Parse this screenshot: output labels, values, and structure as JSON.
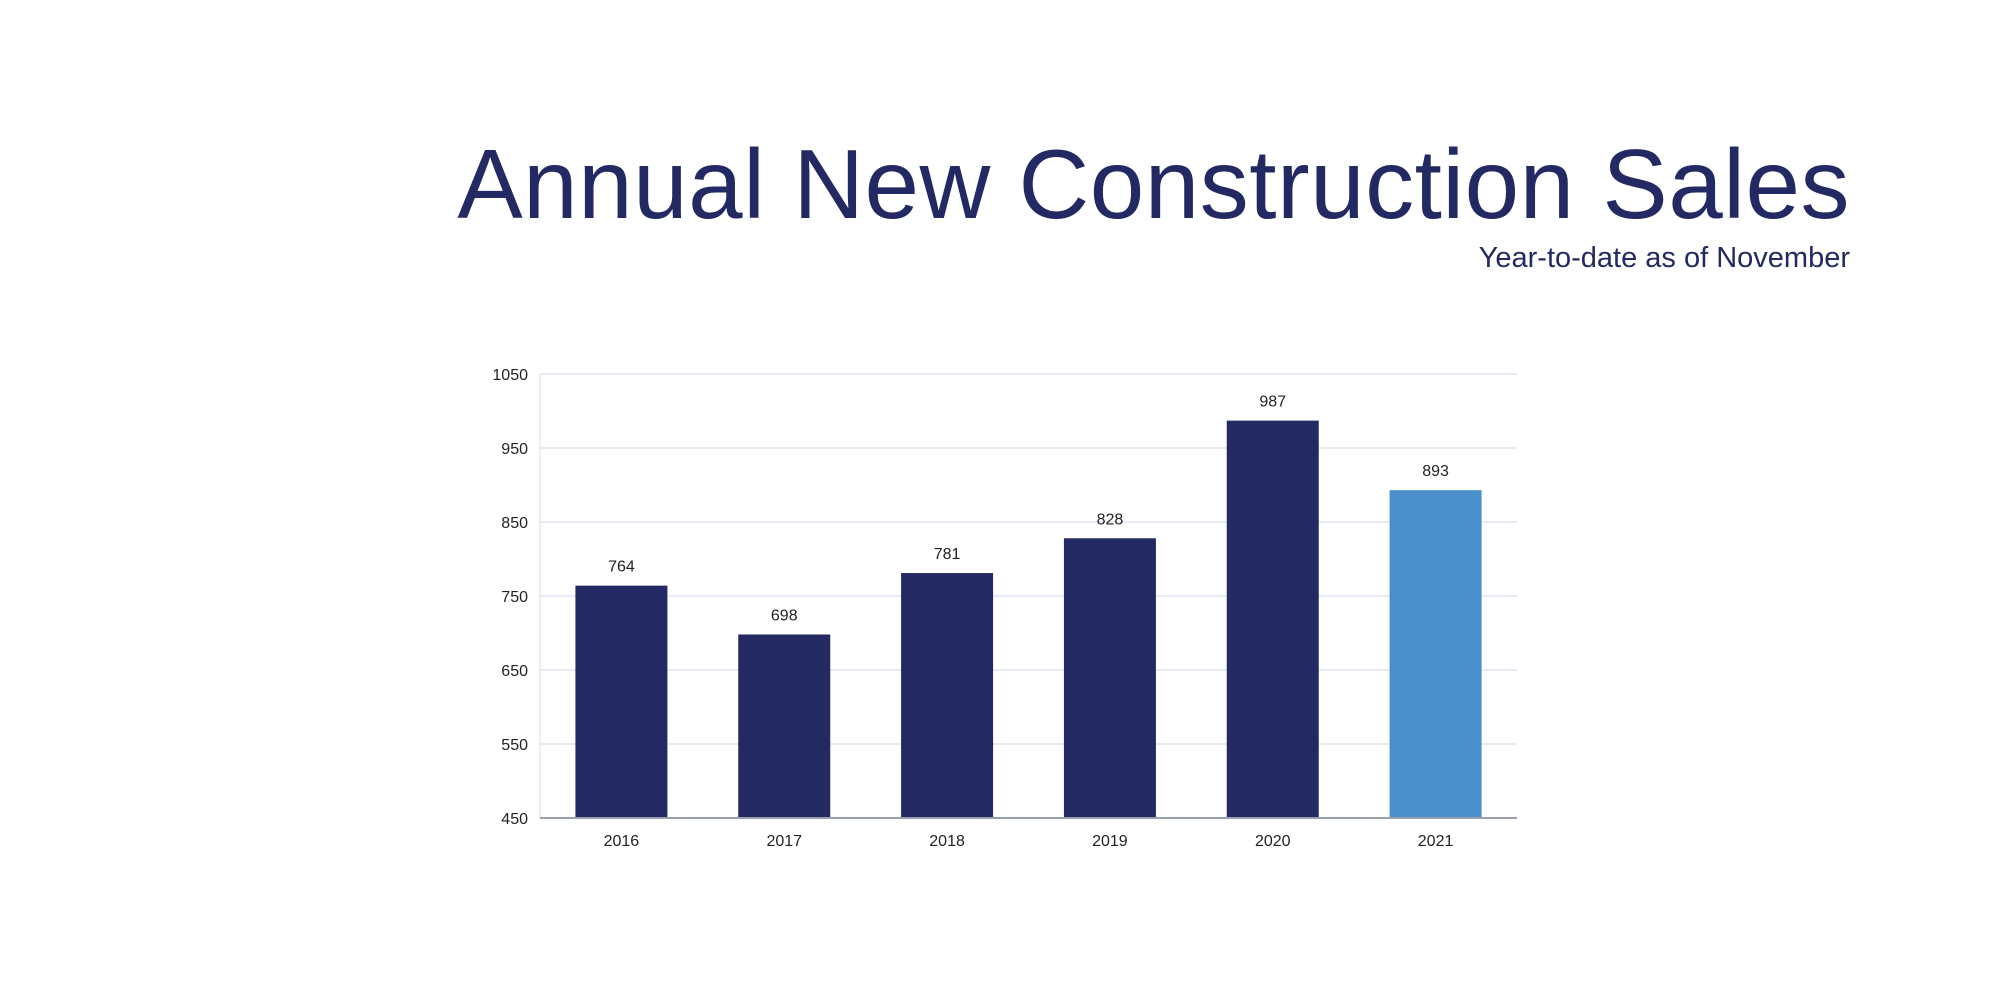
{
  "chart_data": {
    "type": "bar",
    "title": "Annual New Construction Sales",
    "subtitle": "Year-to-date as of November",
    "categories": [
      "2016",
      "2017",
      "2018",
      "2019",
      "2020",
      "2021"
    ],
    "values": [
      764,
      698,
      781,
      828,
      987,
      893
    ],
    "data_labels": [
      "764",
      "698",
      "781",
      "828",
      "987",
      "893"
    ],
    "ylim": [
      450,
      1050
    ],
    "yticks": [
      450,
      550,
      650,
      750,
      850,
      950,
      1050
    ],
    "ytick_labels": [
      "450",
      "550",
      "650",
      "750",
      "850",
      "950",
      "1050"
    ],
    "grid": true,
    "legend": "none",
    "colors": {
      "bar": "#232a63",
      "highlight_bar": "#4a8ecb",
      "highlight_category": "2021",
      "title": "#232a63",
      "grid": "#dde3ee"
    }
  }
}
